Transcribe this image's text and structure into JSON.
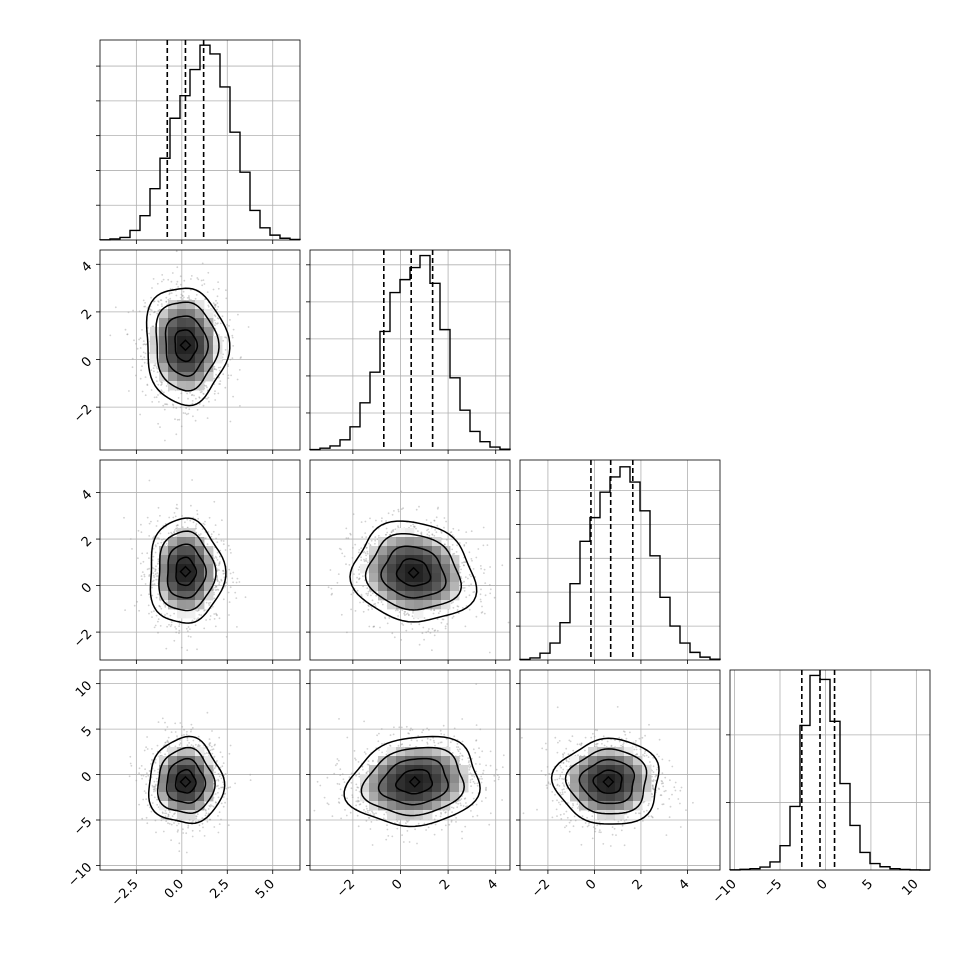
{
  "chart_data": {
    "type": "corner",
    "title": "",
    "grid": true,
    "parameters": [
      {
        "range": [
          -4.5,
          6.5
        ],
        "ticks": [
          -2.5,
          0.0,
          2.5,
          5.0
        ],
        "tick_labels": [
          "−2.5",
          "0.0",
          "2.5",
          "5.0"
        ],
        "quantiles": [
          -0.8,
          0.2,
          1.2
        ],
        "hist_edges_start": -4.5,
        "hist_bin_width": 0.55,
        "hist_counts": [
          1,
          6,
          15,
          55,
          140,
          295,
          470,
          700,
          830,
          980,
          1120,
          1070,
          880,
          620,
          390,
          170,
          70,
          28,
          10,
          3
        ]
      },
      {
        "range": [
          -3.8,
          4.6
        ],
        "ticks": [
          -2,
          0,
          2,
          4
        ],
        "tick_labels": [
          "−2",
          "0",
          "2",
          "4"
        ],
        "quantiles": [
          -0.7,
          0.45,
          1.35
        ],
        "hist_edges_start": -3.8,
        "hist_bin_width": 0.42,
        "hist_counts": [
          2,
          10,
          22,
          55,
          125,
          255,
          420,
          640,
          850,
          920,
          985,
          1050,
          900,
          650,
          390,
          215,
          100,
          45,
          16,
          4
        ]
      },
      {
        "range": [
          -3.2,
          5.4
        ],
        "ticks": [
          -2,
          0,
          2,
          4
        ],
        "tick_labels": [
          "−2",
          "0",
          "2",
          "4"
        ],
        "quantiles": [
          -0.15,
          0.7,
          1.65
        ],
        "hist_edges_start": -3.2,
        "hist_bin_width": 0.43,
        "hist_counts": [
          3,
          12,
          40,
          100,
          220,
          450,
          700,
          840,
          990,
          1080,
          1140,
          1050,
          880,
          615,
          370,
          200,
          100,
          45,
          17,
          5
        ]
      },
      {
        "range": [
          -10.5,
          11.5
        ],
        "ticks": [
          -10,
          -5,
          0,
          5,
          10
        ],
        "tick_labels": [
          "−10",
          "−5",
          "0",
          "5",
          "10"
        ],
        "quantiles": [
          -2.6,
          -0.6,
          1.0
        ],
        "hist_edges_start": -10.5,
        "hist_bin_width": 1.1,
        "hist_counts": [
          1,
          5,
          10,
          22,
          60,
          180,
          470,
          1070,
          1440,
          1410,
          1100,
          640,
          330,
          130,
          48,
          24,
          10,
          4,
          1,
          0
        ]
      }
    ],
    "pairs": [
      {
        "row": 1,
        "col": 0,
        "mean": [
          0.2,
          0.6
        ],
        "sigma": [
          1.1,
          1.2
        ],
        "rho": -0.05
      },
      {
        "row": 2,
        "col": 0,
        "mean": [
          0.2,
          0.6
        ],
        "sigma": [
          1.0,
          1.1
        ],
        "rho": 0.0
      },
      {
        "row": 2,
        "col": 1,
        "mean": [
          0.55,
          0.55
        ],
        "sigma": [
          1.25,
          1.05
        ],
        "rho": -0.1
      },
      {
        "row": 3,
        "col": 0,
        "mean": [
          0.2,
          -0.8
        ],
        "sigma": [
          1.0,
          2.3
        ],
        "rho": 0.0
      },
      {
        "row": 3,
        "col": 1,
        "mean": [
          0.6,
          -0.8
        ],
        "sigma": [
          1.35,
          2.4
        ],
        "rho": 0.12
      },
      {
        "row": 3,
        "col": 2,
        "mean": [
          0.6,
          -0.8
        ],
        "sigma": [
          1.1,
          2.3
        ],
        "rho": 0.0
      }
    ]
  }
}
